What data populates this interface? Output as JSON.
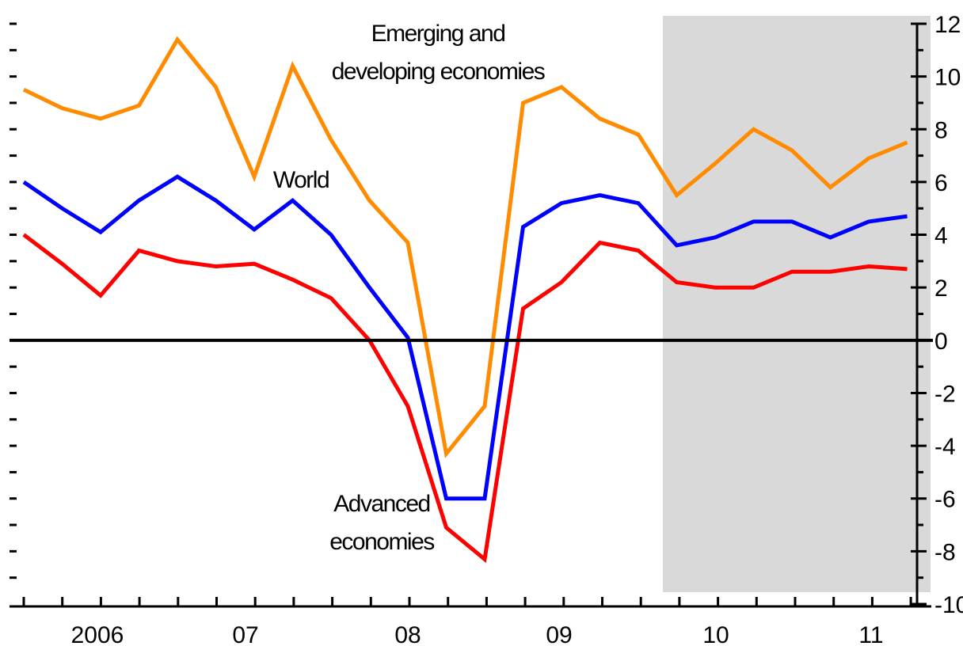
{
  "chart_data": {
    "type": "line",
    "title": "",
    "xlabel": "",
    "ylabel": "",
    "ylim": [
      -10,
      12
    ],
    "yticks": [
      -10,
      -8,
      -6,
      -4,
      -2,
      0,
      2,
      4,
      6,
      8,
      10,
      12
    ],
    "ytick_labels": [
      "-10",
      "-8",
      "-6",
      "-4",
      "-2",
      "0",
      "2",
      "4",
      "6",
      "8",
      "10",
      "12"
    ],
    "x_tick_labels": [
      "2006",
      "07",
      "08",
      "09",
      "10",
      "11"
    ],
    "x_quarters_start": "2005:Q4",
    "x_quarters_end": "2011:Q4",
    "shaded_region": {
      "from": "2010:Q1",
      "to": "2011:Q4",
      "color": "#d9d9d9",
      "meaning": "projection"
    },
    "zero_line": true,
    "grid": false,
    "series": [
      {
        "name": "Emerging and developing economies",
        "color": "#ff8c00",
        "values": [
          9.5,
          8.8,
          8.4,
          8.9,
          11.4,
          9.6,
          6.2,
          10.4,
          7.6,
          5.3,
          3.7,
          -4.3,
          -2.5,
          9.0,
          9.6,
          8.4,
          7.8,
          5.5,
          6.7,
          8.0,
          7.2,
          5.8,
          6.9,
          7.5
        ]
      },
      {
        "name": "World",
        "color": "#0000ff",
        "values": [
          6.0,
          5.0,
          4.1,
          5.3,
          6.2,
          5.3,
          4.2,
          5.3,
          4.0,
          2.0,
          0.1,
          -6.0,
          -6.0,
          4.3,
          5.2,
          5.5,
          5.2,
          3.6,
          3.9,
          4.5,
          4.5,
          3.9,
          4.5,
          4.7
        ]
      },
      {
        "name": "Advanced economies",
        "color": "#ff0000",
        "values": [
          4.0,
          2.9,
          1.7,
          3.4,
          3.0,
          2.8,
          2.9,
          2.3,
          1.6,
          0.0,
          -2.5,
          -7.1,
          -8.3,
          1.2,
          2.2,
          3.7,
          3.4,
          2.2,
          2.0,
          2.0,
          2.6,
          2.6,
          2.8,
          2.7
        ]
      }
    ],
    "annotations": [
      {
        "series": "Emerging and developing economies",
        "lines": [
          "Emerging and",
          "developing economies"
        ]
      },
      {
        "series": "World",
        "lines": [
          "World"
        ]
      },
      {
        "series": "Advanced economies",
        "lines": [
          "Advanced",
          "economies"
        ]
      }
    ]
  }
}
